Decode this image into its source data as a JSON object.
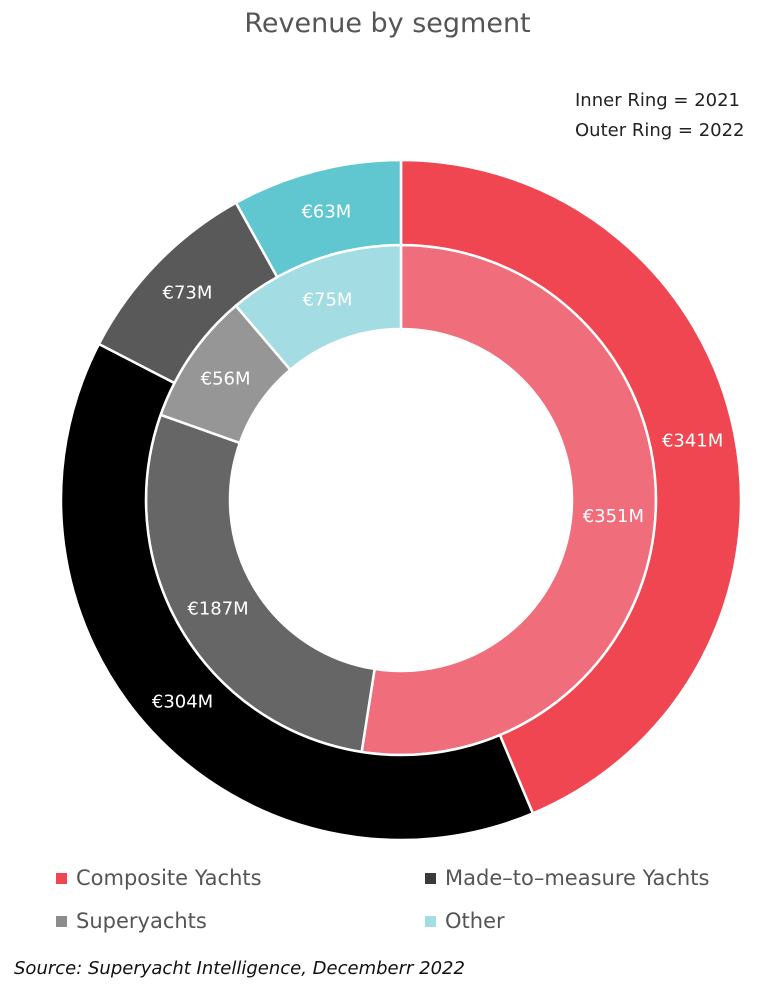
{
  "chart_data": {
    "type": "pie",
    "variant": "nested-donut",
    "title": "Revenue by segment",
    "ring_notes": {
      "inner": "Inner Ring = 2021",
      "outer": "Outer Ring = 2022"
    },
    "categories": [
      "Composite Yachts",
      "Made-to-measure Yachts",
      "Superyachts",
      "Other"
    ],
    "legend_labels": [
      "Composite Yachts",
      "Made–to–measure Yachts",
      "Superyachts",
      "Other"
    ],
    "series": [
      {
        "ring": "inner",
        "year": "2021",
        "values": [
          351,
          187,
          56,
          75
        ],
        "value_labels": [
          "€351M",
          "€187M",
          "€56M",
          "€75M"
        ],
        "colors": [
          "#f06d7b",
          "#666666",
          "#969696",
          "#a3dde3"
        ]
      },
      {
        "ring": "outer",
        "year": "2022",
        "values": [
          341,
          304,
          73,
          63
        ],
        "value_labels": [
          "€341M",
          "€304M",
          "€73M",
          "€63M"
        ],
        "colors": [
          "#ef4651",
          "#000000",
          "#595959",
          "#60c7d0"
        ]
      }
    ],
    "unit": "€M",
    "legend_position": "bottom",
    "legend_colors": [
      "#ef4651",
      "#3a3a3a",
      "#8c8c8c",
      "#a3dde3"
    ],
    "source": "Source: Superyacht Intelligence, Decemberr 2022"
  }
}
